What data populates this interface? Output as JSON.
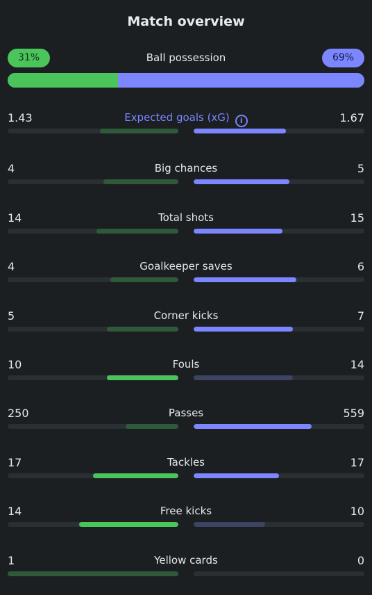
{
  "title": "Match overview",
  "possession": {
    "label": "Ball possession",
    "home": "31%",
    "away": "69%",
    "home_pct": 31,
    "away_pct": 69
  },
  "colors": {
    "home_strong": "#4cc45c",
    "home_dim": "#2f5a3a",
    "away_strong": "#7b86ff",
    "away_dim": "#3d4361",
    "track": "#2a2f33"
  },
  "stats": [
    {
      "label": "Expected goals (xG)",
      "home": "1.43",
      "away": "1.67",
      "home_frac": 0.46,
      "away_frac": 0.54,
      "home_style": "dim",
      "away_style": "strong",
      "info_icon": "info-icon"
    },
    {
      "label": "Big chances",
      "home": "4",
      "away": "5",
      "home_frac": 0.44,
      "away_frac": 0.56,
      "home_style": "dim",
      "away_style": "strong"
    },
    {
      "label": "Total shots",
      "home": "14",
      "away": "15",
      "home_frac": 0.48,
      "away_frac": 0.52,
      "home_style": "dim",
      "away_style": "strong"
    },
    {
      "label": "Goalkeeper saves",
      "home": "4",
      "away": "6",
      "home_frac": 0.4,
      "away_frac": 0.6,
      "home_style": "dim",
      "away_style": "strong"
    },
    {
      "label": "Corner kicks",
      "home": "5",
      "away": "7",
      "home_frac": 0.42,
      "away_frac": 0.58,
      "home_style": "dim",
      "away_style": "strong"
    },
    {
      "label": "Fouls",
      "home": "10",
      "away": "14",
      "home_frac": 0.42,
      "away_frac": 0.58,
      "home_style": "strong",
      "away_style": "dim"
    },
    {
      "label": "Passes",
      "home": "250",
      "away": "559",
      "home_frac": 0.31,
      "away_frac": 0.69,
      "home_style": "dim",
      "away_style": "strong"
    },
    {
      "label": "Tackles",
      "home": "17",
      "away": "17",
      "home_frac": 0.5,
      "away_frac": 0.5,
      "home_style": "strong",
      "away_style": "strong"
    },
    {
      "label": "Free kicks",
      "home": "14",
      "away": "10",
      "home_frac": 0.58,
      "away_frac": 0.42,
      "home_style": "strong",
      "away_style": "dim"
    },
    {
      "label": "Yellow cards",
      "home": "1",
      "away": "0",
      "home_frac": 1.0,
      "away_frac": 0.0,
      "home_style": "dim",
      "away_style": "dim"
    }
  ]
}
